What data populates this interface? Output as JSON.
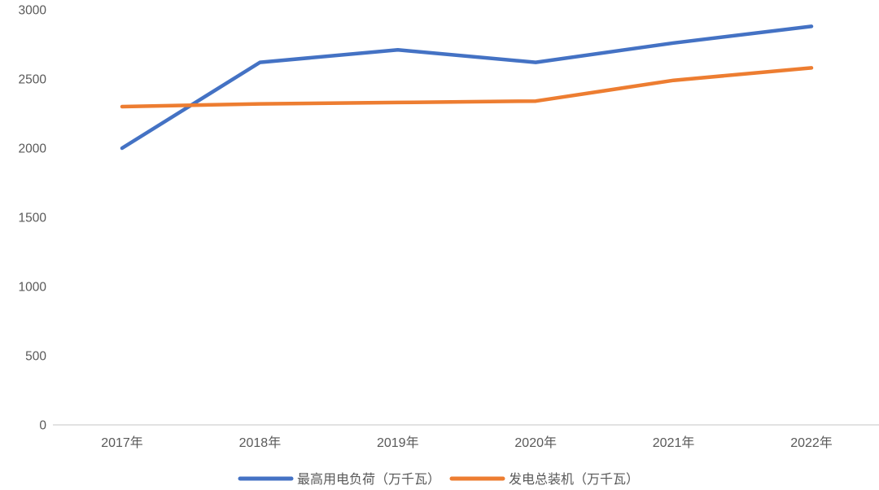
{
  "chart_data": {
    "type": "line",
    "title": "",
    "xlabel": "",
    "ylabel": "",
    "categories": [
      "2017年",
      "2018年",
      "2019年",
      "2020年",
      "2021年",
      "2022年"
    ],
    "series": [
      {
        "name": "最高用电负荷（万千瓦）",
        "color": "#4472C4",
        "values": [
          2000,
          2620,
          2710,
          2620,
          2760,
          2880
        ]
      },
      {
        "name": "发电总装机（万千瓦）",
        "color": "#ED7D31",
        "values": [
          2300,
          2320,
          2330,
          2340,
          2490,
          2580
        ]
      }
    ],
    "ylim": [
      0,
      3000
    ],
    "y_ticks": [
      0,
      500,
      1000,
      1500,
      2000,
      2500,
      3000
    ],
    "y_tick_labels": [
      "0",
      "500",
      "1000",
      "1500",
      "2000",
      "2500",
      "3000"
    ],
    "gridlines": false,
    "legend_position": "bottom",
    "colors": {
      "axis_line": "#D9D9D9",
      "tick_label": "#595959",
      "legend_text": "#595959",
      "background": "#FFFFFF"
    }
  }
}
